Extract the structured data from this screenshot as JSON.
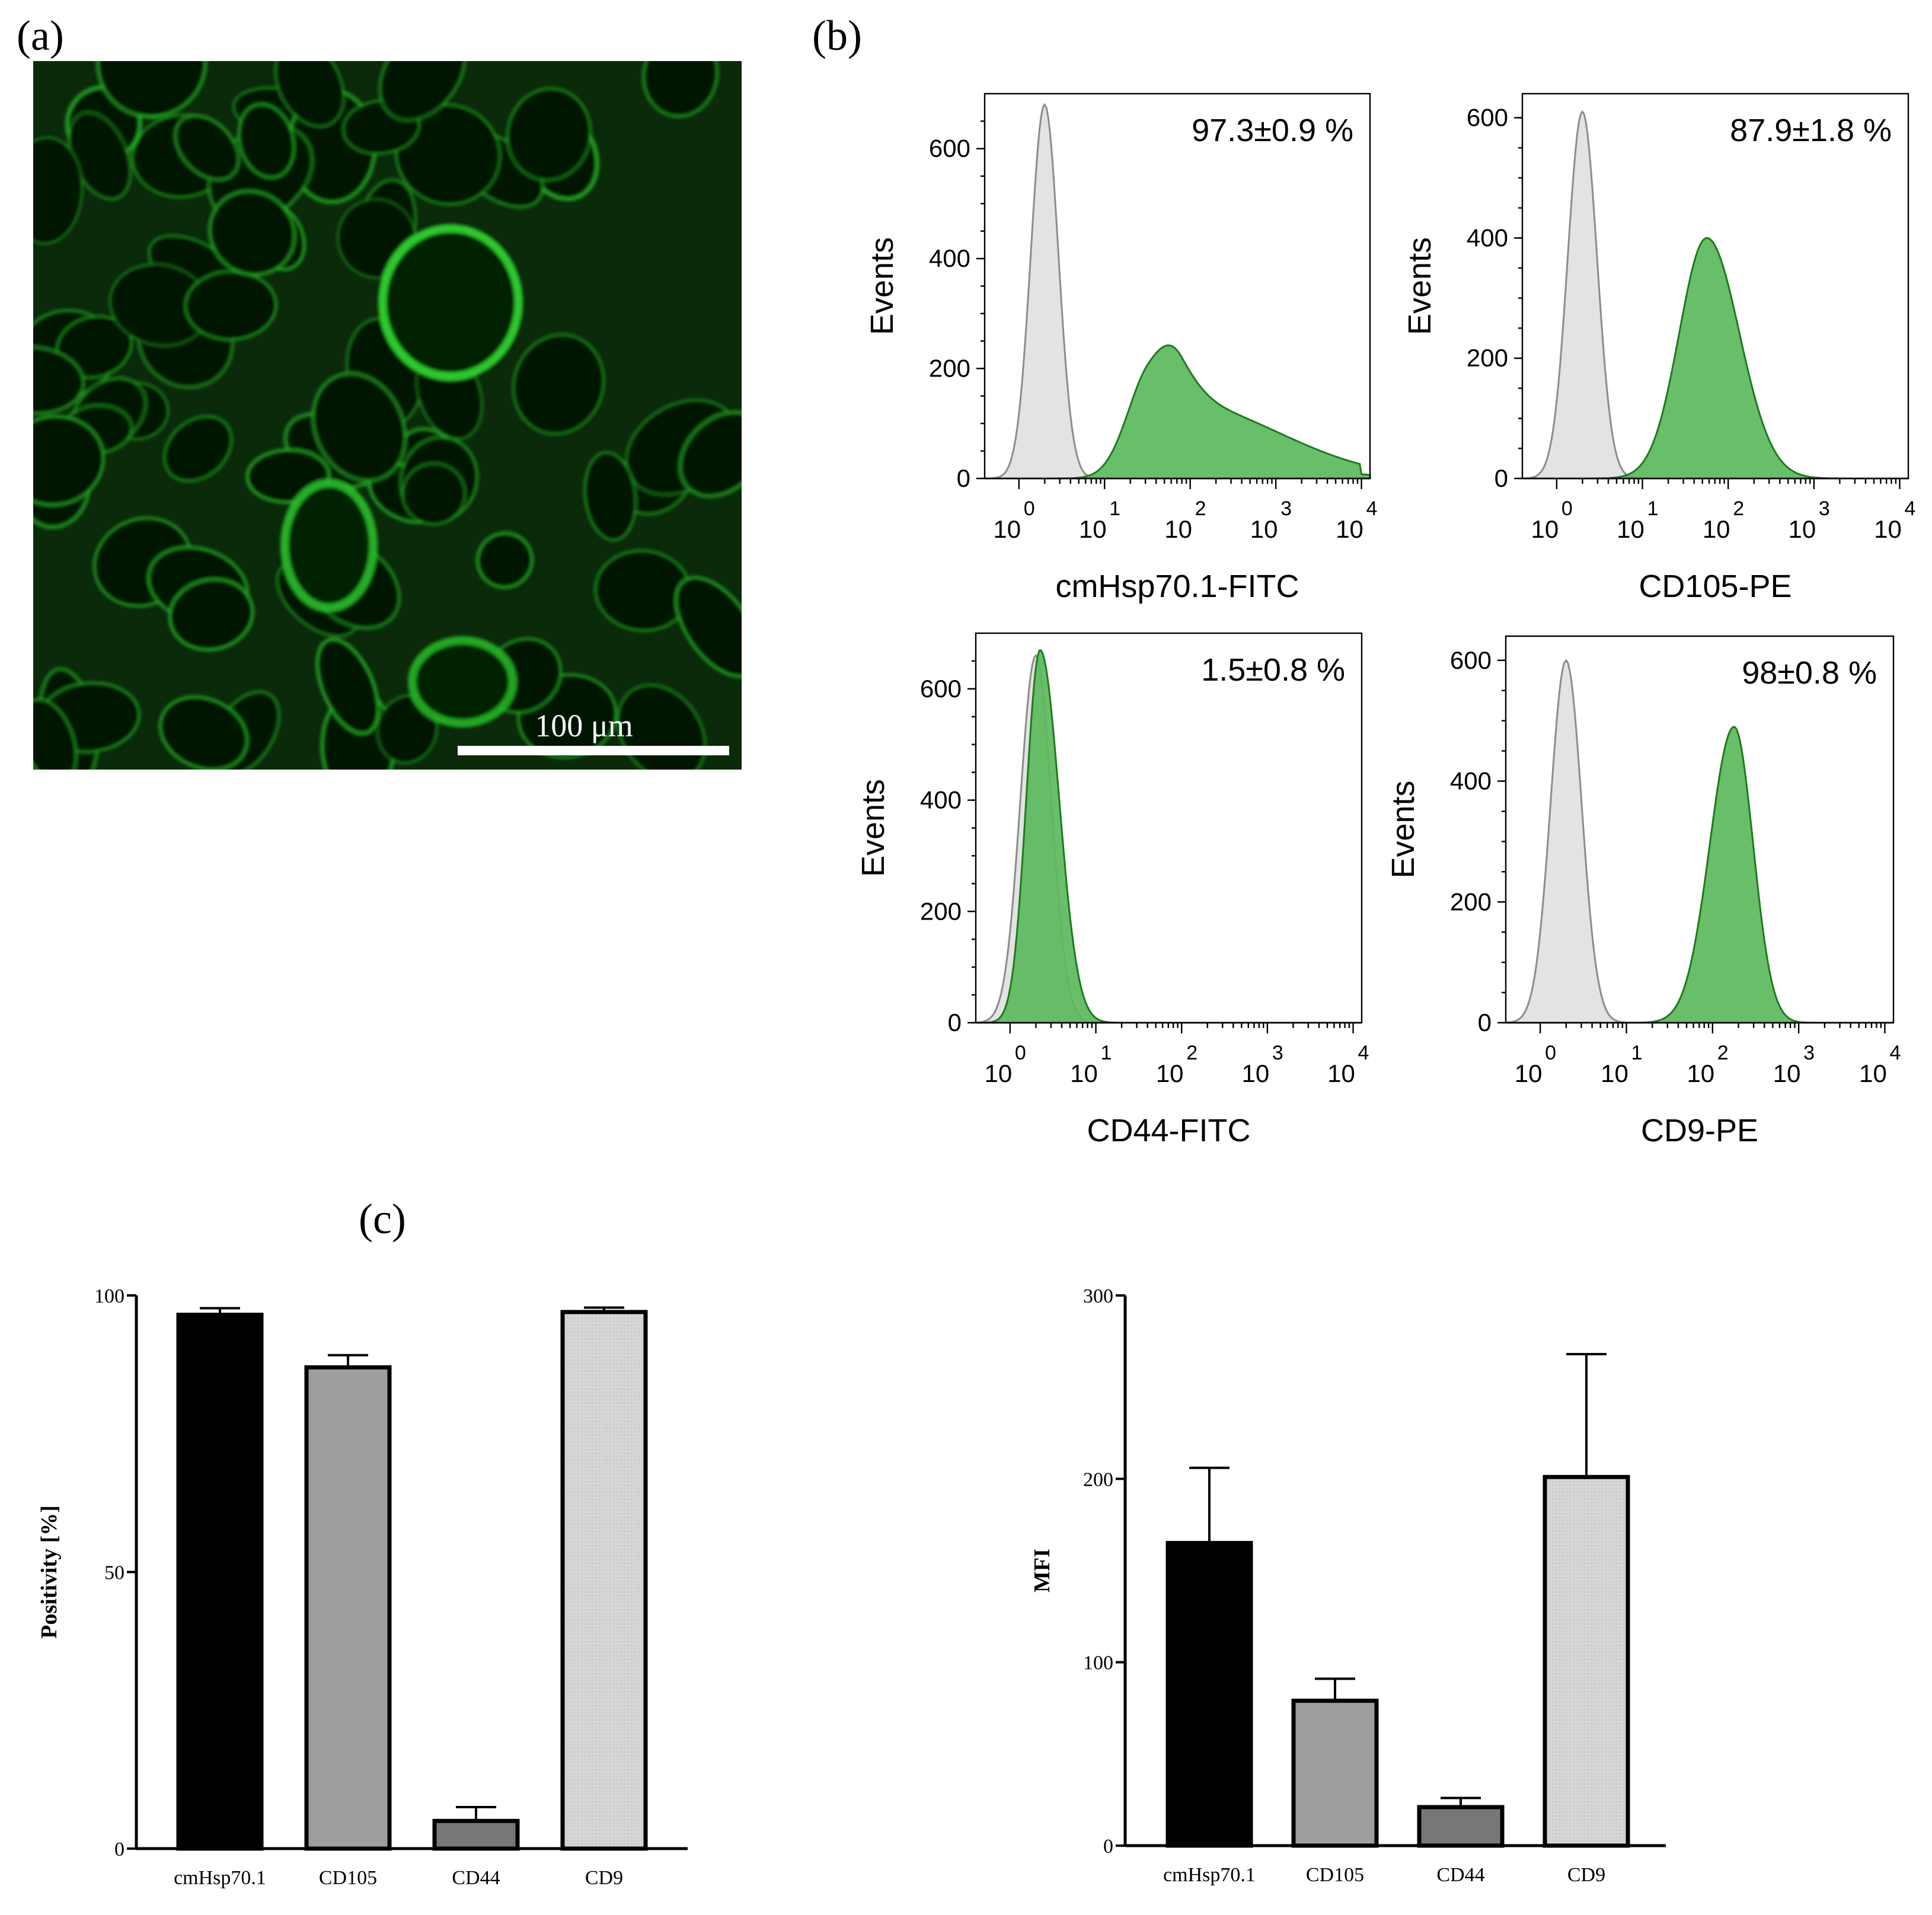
{
  "panels": {
    "a": "(a)",
    "b": "(b)",
    "c": "(c)"
  },
  "micrograph": {
    "scale_label": "100 μm",
    "colors": {
      "background": "#0a2a0a",
      "stain": "#2fd12f"
    }
  },
  "colors": {
    "isotype_fill": "#e3e3e3",
    "isotype_stroke": "#8c8c8c",
    "marker_fill": "#5cb85c",
    "marker_stroke": "#1e7a1e"
  },
  "histograms": [
    {
      "id": "cmhsp",
      "percent": "97.3±0.9 %",
      "xlabel": "cmHsp70.1-FITC",
      "ylabel": "Events",
      "yticks": [
        "0",
        "200",
        "400",
        "600"
      ],
      "ymax": 700,
      "iso": {
        "center": 0.3,
        "sigma": 0.16,
        "peak": 680
      },
      "marker": {
        "type": "skew",
        "center": 1.5,
        "peak": 300,
        "sl": 0.26,
        "tail": 0.72,
        "amp2": 0.45
      }
    },
    {
      "id": "cd105",
      "percent": "87.9±1.8 %",
      "xlabel": "CD105-PE",
      "ylabel": "Events",
      "yticks": [
        "0",
        "200",
        "400",
        "600"
      ],
      "ymax": 640,
      "iso": {
        "center": 0.3,
        "sigma": 0.17,
        "peak": 610
      },
      "marker": {
        "type": "gauss",
        "center": 1.75,
        "peak": 400,
        "sl": 0.32,
        "sr": 0.38
      }
    },
    {
      "id": "cd44",
      "percent": "1.5±0.8 %",
      "xlabel": "CD44-FITC",
      "ylabel": "Events",
      "yticks": [
        "0",
        "200",
        "400",
        "600"
      ],
      "ymax": 700,
      "iso": {
        "center": 0.3,
        "sigma": 0.18,
        "peak": 660
      },
      "marker": {
        "type": "gauss",
        "center": 0.35,
        "peak": 670,
        "sl": 0.16,
        "sr": 0.22
      }
    },
    {
      "id": "cd9",
      "percent": "98±0.8 %",
      "xlabel": "CD9-PE",
      "ylabel": "Events",
      "yticks": [
        "0",
        "200",
        "400",
        "600"
      ],
      "ymax": 640,
      "iso": {
        "center": 0.3,
        "sigma": 0.18,
        "peak": 600
      },
      "marker": {
        "type": "gauss",
        "center": 2.25,
        "peak": 490,
        "sl": 0.28,
        "sr": 0.22
      }
    }
  ],
  "xtick_powers": [
    "0",
    "1",
    "2",
    "3",
    "4"
  ],
  "xtick_base": "10",
  "chart_data": [
    {
      "type": "bar",
      "title": "",
      "xlabel": "",
      "ylabel": "Positivity [%]",
      "categories": [
        "cmHsp70.1",
        "CD105",
        "CD44",
        "CD9"
      ],
      "values": [
        96.5,
        87,
        5,
        97
      ],
      "errors": [
        1.2,
        2.2,
        2.5,
        0.8
      ],
      "ylim": [
        0,
        100
      ],
      "yticks": [
        "0",
        "50",
        "100"
      ],
      "bar_colors": [
        "#000000",
        "#9e9e9e",
        "#777777",
        "#d8d8d8"
      ]
    },
    {
      "type": "bar",
      "title": "",
      "xlabel": "",
      "ylabel": "MFI",
      "categories": [
        "cmHsp70.1",
        "CD105",
        "CD44",
        "CD9"
      ],
      "values": [
        165,
        79,
        21,
        201
      ],
      "errors": [
        41,
        12,
        5,
        67
      ],
      "ylim": [
        0,
        300
      ],
      "yticks": [
        "0",
        "100",
        "200",
        "300"
      ],
      "bar_colors": [
        "#000000",
        "#9e9e9e",
        "#777777",
        "#d8d8d8"
      ]
    }
  ]
}
